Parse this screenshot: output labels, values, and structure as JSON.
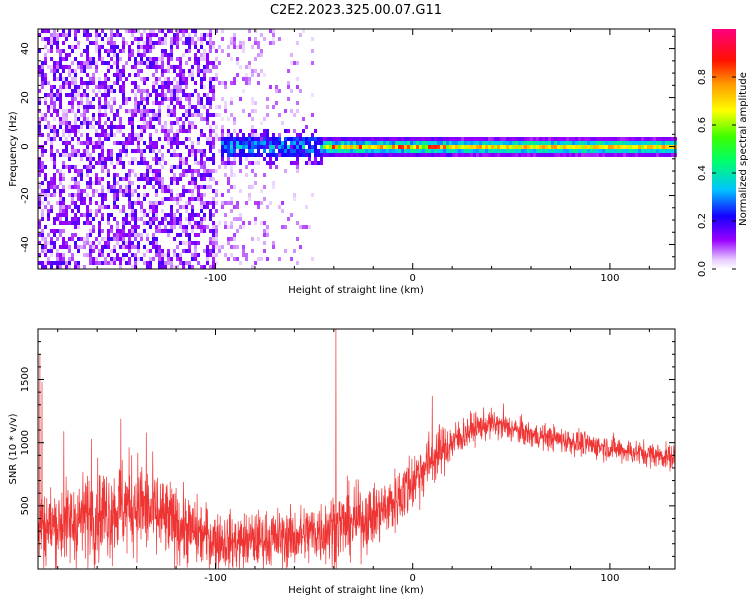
{
  "chart_data": [
    {
      "type": "heatmap",
      "title": "C2E2.2023.325.00.07.G11",
      "xlabel": "Height of straight line (km)",
      "ylabel": "Frequency (Hz)",
      "xlim": [
        -190,
        133
      ],
      "ylim": [
        -50,
        48
      ],
      "xticks": [
        -100,
        0,
        100
      ],
      "yticks": [
        -40,
        -20,
        0,
        20,
        40
      ],
      "colorbar": {
        "label": "Normalized spectral amplitude",
        "range": [
          0.0,
          1.0
        ],
        "ticks": [
          0.0,
          0.2,
          0.4,
          0.6,
          0.8
        ],
        "colormap": "gist_rainbow_r (white at 0, purple, blue, cyan, green, yellow, orange, red, magenta at 1)"
      },
      "features": {
        "carrier_frequency_hz": 0,
        "noise_region_km": [
          -190,
          -100
        ],
        "scattered_region_km": [
          -100,
          -50
        ],
        "carrier_spread_region_km": [
          -97,
          -45
        ],
        "carrier_peak_region_km": [
          -40,
          20
        ],
        "stable_carrier_region_km": [
          20,
          133
        ]
      }
    },
    {
      "type": "line",
      "xlabel": "Height of straight line (km)",
      "ylabel": "SNR (10 * v/v)",
      "xlim": [
        -190,
        133
      ],
      "ylim": [
        0,
        1900
      ],
      "xticks": [
        -100,
        0,
        100
      ],
      "yticks": [
        500,
        1000,
        1500
      ],
      "color": "#ef3434",
      "envelope": {
        "x": [
          -190,
          -175,
          -160,
          -150,
          -140,
          -130,
          -120,
          -110,
          -100,
          -90,
          -80,
          -70,
          -60,
          -50,
          -40,
          -30,
          -20,
          -10,
          0,
          10,
          20,
          30,
          40,
          50,
          60,
          70,
          80,
          90,
          100,
          110,
          120,
          133
        ],
        "mean": [
          330,
          360,
          440,
          470,
          520,
          420,
          350,
          290,
          230,
          210,
          230,
          240,
          250,
          290,
          330,
          370,
          420,
          520,
          700,
          880,
          1000,
          1110,
          1150,
          1110,
          1060,
          1040,
          1010,
          980,
          960,
          930,
          910,
          880
        ],
        "spread": [
          280,
          300,
          330,
          340,
          360,
          320,
          270,
          240,
          210,
          200,
          200,
          210,
          210,
          230,
          260,
          250,
          220,
          220,
          230,
          200,
          150,
          110,
          100,
          100,
          90,
          90,
          90,
          90,
          90,
          90,
          90,
          90
        ]
      },
      "spikes": [
        {
          "x": -189,
          "y": 1700
        },
        {
          "x": -188,
          "y": 1480
        },
        {
          "x": -177,
          "y": 1090
        },
        {
          "x": -163,
          "y": 1030
        },
        {
          "x": -148,
          "y": 1190
        },
        {
          "x": -135,
          "y": 1080
        },
        {
          "x": -39,
          "y": 1900
        },
        {
          "x": 10,
          "y": 1370
        },
        {
          "x": 46,
          "y": 1310
        }
      ]
    }
  ]
}
